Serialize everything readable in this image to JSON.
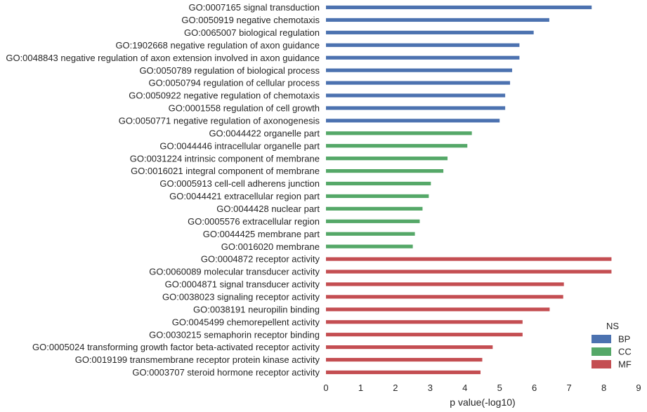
{
  "chart_data": {
    "type": "bar",
    "orientation": "horizontal",
    "xlabel": "p value(-log10)",
    "ylabel": "",
    "xlim": [
      0,
      9
    ],
    "xticks": [
      0,
      1,
      2,
      3,
      4,
      5,
      6,
      7,
      8,
      9
    ],
    "grid": false,
    "legend": {
      "title": "NS",
      "placement": "lower-right",
      "entries": [
        {
          "name": "BP",
          "color": "#4c72b0"
        },
        {
          "name": "CC",
          "color": "#55a868"
        },
        {
          "name": "MF",
          "color": "#c44e52"
        }
      ]
    },
    "bars": [
      {
        "category": "GO:0007165 signal transduction",
        "value": 7.65,
        "ns": "BP"
      },
      {
        "category": "GO:0050919 negative chemotaxis",
        "value": 6.43,
        "ns": "BP"
      },
      {
        "category": "GO:0065007 biological regulation",
        "value": 5.98,
        "ns": "BP"
      },
      {
        "category": "GO:1902668 negative regulation of axon guidance",
        "value": 5.57,
        "ns": "BP"
      },
      {
        "category": "GO:0048843 negative regulation of axon extension involved in axon guidance",
        "value": 5.57,
        "ns": "BP"
      },
      {
        "category": "GO:0050789 regulation of biological process",
        "value": 5.36,
        "ns": "BP"
      },
      {
        "category": "GO:0050794 regulation of cellular process",
        "value": 5.3,
        "ns": "BP"
      },
      {
        "category": "GO:0050922 negative regulation of chemotaxis",
        "value": 5.16,
        "ns": "BP"
      },
      {
        "category": "GO:0001558 regulation of cell growth",
        "value": 5.16,
        "ns": "BP"
      },
      {
        "category": "GO:0050771 negative regulation of axonogenesis",
        "value": 5.0,
        "ns": "BP"
      },
      {
        "category": "GO:0044422 organelle part",
        "value": 4.2,
        "ns": "CC"
      },
      {
        "category": "GO:0044446 intracellular organelle part",
        "value": 4.07,
        "ns": "CC"
      },
      {
        "category": "GO:0031224 intrinsic component of membrane",
        "value": 3.5,
        "ns": "CC"
      },
      {
        "category": "GO:0016021 integral component of membrane",
        "value": 3.38,
        "ns": "CC"
      },
      {
        "category": "GO:0005913 cell-cell adherens junction",
        "value": 3.02,
        "ns": "CC"
      },
      {
        "category": "GO:0044421 extracellular region part",
        "value": 2.96,
        "ns": "CC"
      },
      {
        "category": "GO:0044428 nuclear part",
        "value": 2.78,
        "ns": "CC"
      },
      {
        "category": "GO:0005576 extracellular region",
        "value": 2.7,
        "ns": "CC"
      },
      {
        "category": "GO:0044425 membrane part",
        "value": 2.56,
        "ns": "CC"
      },
      {
        "category": "GO:0016020 membrane",
        "value": 2.5,
        "ns": "CC"
      },
      {
        "category": "GO:0004872 receptor activity",
        "value": 8.22,
        "ns": "MF"
      },
      {
        "category": "GO:0060089 molecular transducer activity",
        "value": 8.22,
        "ns": "MF"
      },
      {
        "category": "GO:0004871 signal transducer activity",
        "value": 6.85,
        "ns": "MF"
      },
      {
        "category": "GO:0038023 signaling receptor activity",
        "value": 6.83,
        "ns": "MF"
      },
      {
        "category": "GO:0038191 neuropilin binding",
        "value": 6.44,
        "ns": "MF"
      },
      {
        "category": "GO:0045499 chemorepellent activity",
        "value": 5.66,
        "ns": "MF"
      },
      {
        "category": "GO:0030215 semaphorin receptor binding",
        "value": 5.66,
        "ns": "MF"
      },
      {
        "category": "GO:0005024 transforming growth factor beta-activated receptor activity",
        "value": 4.8,
        "ns": "MF"
      },
      {
        "category": "GO:0019199 transmembrane receptor protein kinase activity",
        "value": 4.5,
        "ns": "MF"
      },
      {
        "category": "GO:0003707 steroid hormone receptor activity",
        "value": 4.45,
        "ns": "MF"
      }
    ]
  }
}
